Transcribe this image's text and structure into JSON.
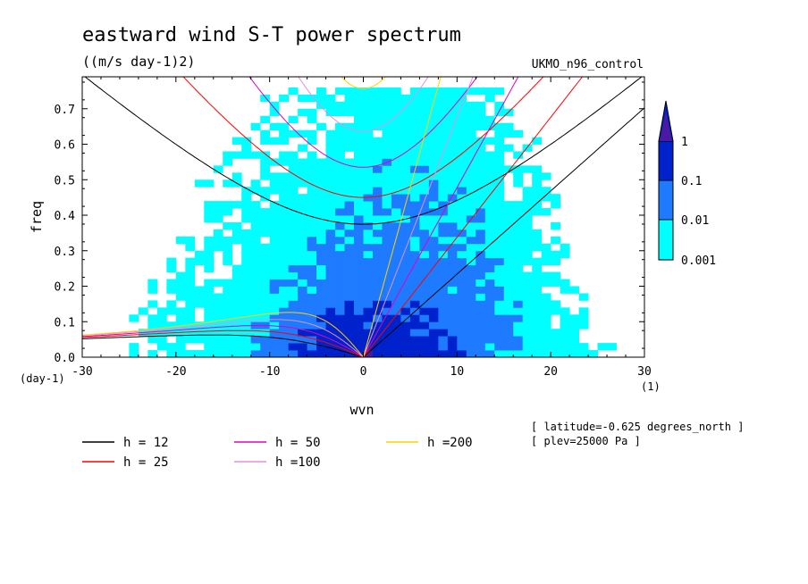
{
  "chart_data": {
    "type": "heatmap",
    "title": "eastward wind S-T power spectrum",
    "subtitle": "((m/s day-1)2)",
    "dataset": "UKMO_n96_control",
    "xlabel": "wvn",
    "ylabel": "freq",
    "x_units": "(1)",
    "y_units": "(day-1)",
    "xlim": [
      -30,
      30
    ],
    "ylim": [
      0,
      0.79
    ],
    "x_ticks": [
      -30,
      -20,
      -10,
      0,
      10,
      20,
      30
    ],
    "y_ticks": [
      0.0,
      0.1,
      0.2,
      0.3,
      0.4,
      0.5,
      0.6,
      0.7
    ],
    "x_tick_labels": [
      "-30",
      "-20",
      "-10",
      "0",
      "10",
      "20",
      "30"
    ],
    "y_tick_labels": [
      "0.0",
      "0.1",
      "0.2",
      "0.3",
      "0.4",
      "0.5",
      "0.6",
      "0.7"
    ],
    "colorbar": {
      "levels": [
        0.001,
        0.01,
        0.1,
        1
      ],
      "labels": [
        "0.001",
        "0.01",
        "0.1",
        "1"
      ],
      "colors": [
        "#00ffff",
        "#1e7bff",
        "#0022cc",
        "#4a1aa0"
      ]
    },
    "dispersion_curves": [
      {
        "label": "h = 12",
        "h": 12,
        "color": "#000000"
      },
      {
        "label": "h = 25",
        "h": 25,
        "color": "#ff0000"
      },
      {
        "label": "h = 50",
        "h": 50,
        "color": "#e000c0"
      },
      {
        "label": "h =100",
        "h": 100,
        "color": "#e090e0"
      },
      {
        "label": "h =200",
        "h": 200,
        "color": "#ffd000"
      }
    ],
    "annotations": [
      "[ latitude=-0.625 degrees_north ]",
      "[ plev=25000 Pa ]"
    ]
  }
}
